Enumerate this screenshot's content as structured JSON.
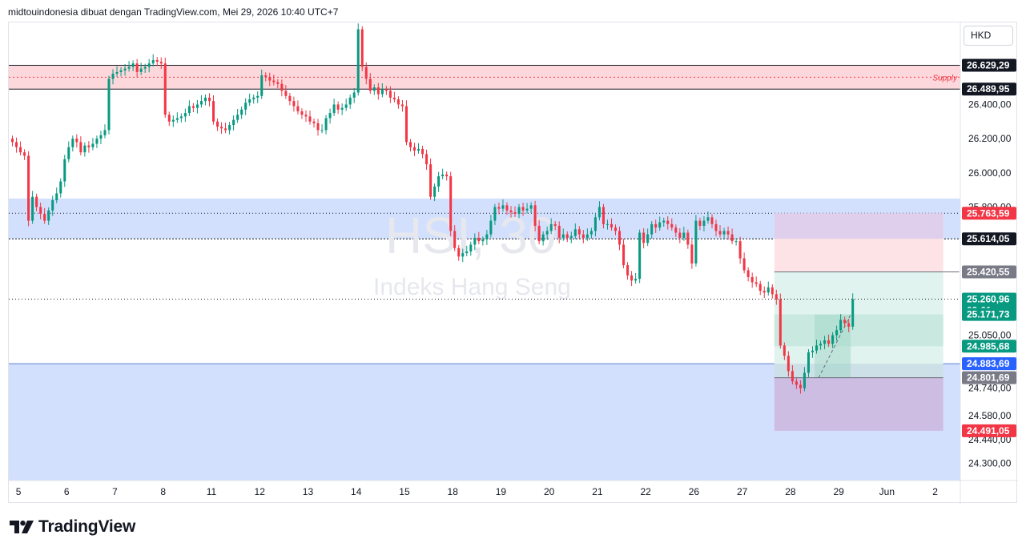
{
  "header": {
    "text": "midtouindonesia dibuat dengan TradingView.com, Mei 29, 2026 10:40 UTC+7"
  },
  "currency": "HKD",
  "footer": {
    "logo_text": "TradingView",
    "logo_icon": "tradingview-logo-icon"
  },
  "colors": {
    "up": "#089981",
    "down": "#f23645",
    "supply_fill": "#fcd7db",
    "demand_fill": "#d3e0fd",
    "stop_zone": "#fde3e6",
    "target_zone": "#e0f3ee",
    "text": "#131722",
    "black_tag": "#131722",
    "grey_tag": "#787b86",
    "blue_tag": "#2962ff",
    "red_tag": "#f23645",
    "green_tag": "#089981"
  },
  "chart_data": {
    "type": "candlestick",
    "symbol_watermark": "HSI, 30",
    "name_watermark": "Indeks Hang Seng",
    "y_axis": {
      "range": [
        24200,
        26880
      ],
      "ticks": [
        "26.400,00",
        "26.200,00",
        "26.000,00",
        "25.800,00",
        "25.050,00",
        "24.740,00",
        "24.580,00",
        "24.440,00",
        "24.300,00"
      ],
      "tick_values": [
        26400,
        26200,
        26000,
        25800,
        25050,
        24740,
        24580,
        24440,
        24300
      ]
    },
    "x_axis": {
      "labels": [
        "5",
        "6",
        "7",
        "8",
        "11",
        "12",
        "13",
        "14",
        "15",
        "18",
        "19",
        "20",
        "21",
        "22",
        "26",
        "27",
        "28",
        "29",
        "Jun",
        "2"
      ],
      "label_bars": [
        2,
        14,
        26,
        38,
        50,
        62,
        74,
        86,
        98,
        110,
        122,
        134,
        146,
        158,
        170,
        182,
        194,
        206,
        218,
        230
      ]
    },
    "zones": [
      {
        "name": "Supply",
        "label": "Supply",
        "top": 26629.29,
        "bottom": 26489.95
      },
      {
        "name": "Demand-upper",
        "top": 25850,
        "bottom": 25614.05
      },
      {
        "name": "Demand-lower",
        "top": 24883.69,
        "bottom": 24200
      }
    ],
    "position": {
      "start_bar": 190,
      "end_bar": 232,
      "stop": 25763.59,
      "entry": 25420.55,
      "target1": 25171.73,
      "target2": 24985.68,
      "low": 24801.69,
      "final": 24491.05
    },
    "price_tags": [
      {
        "label": "26.629,29",
        "value": 26629.29,
        "style": "black_tag"
      },
      {
        "label": "26.489,95",
        "value": 26489.95,
        "style": "black_tag"
      },
      {
        "label": "25.763,59",
        "value": 25763.59,
        "style": "red_tag"
      },
      {
        "label": "25.614,05",
        "value": 25614.05,
        "style": "black_tag"
      },
      {
        "label": "25.420,55",
        "value": 25420.55,
        "style": "grey_tag"
      },
      {
        "label": "25.260,96",
        "sublabel": "09:01",
        "value": 25260.96,
        "style": "green_tag"
      },
      {
        "label": "25.171,73",
        "value": 25171.73,
        "style": "green_tag"
      },
      {
        "label": "24.985,68",
        "value": 24985.68,
        "style": "green_tag"
      },
      {
        "label": "24.883,69",
        "value": 24883.69,
        "style": "blue_tag"
      },
      {
        "label": "24.801,69",
        "value": 24801.69,
        "style": "grey_tag"
      },
      {
        "label": "24.491,05",
        "value": 24491.05,
        "style": "red_tag"
      }
    ],
    "closes": [
      26180,
      26150,
      26120,
      26100,
      25720,
      25860,
      25800,
      25760,
      25720,
      25780,
      25840,
      25880,
      25950,
      26080,
      26150,
      26200,
      26180,
      26120,
      26160,
      26150,
      26170,
      26200,
      26220,
      26250,
      26550,
      26580,
      26590,
      26600,
      26610,
      26620,
      26640,
      26590,
      26610,
      26620,
      26640,
      26660,
      26650,
      26640,
      26340,
      26300,
      26310,
      26320,
      26330,
      26350,
      26390,
      26380,
      26400,
      26420,
      26440,
      26420,
      26300,
      26270,
      26260,
      26250,
      26280,
      26310,
      26340,
      26370,
      26410,
      26430,
      26440,
      26450,
      26570,
      26560,
      26540,
      26530,
      26520,
      26480,
      26450,
      26420,
      26390,
      26360,
      26340,
      26330,
      26300,
      26290,
      26250,
      26250,
      26320,
      26350,
      26400,
      26370,
      26380,
      26400,
      26440,
      26470,
      26840,
      26620,
      26550,
      26480,
      26500,
      26460,
      26490,
      26480,
      26440,
      26430,
      26400,
      26390,
      26180,
      26150,
      26130,
      26140,
      26110,
      26050,
      25860,
      25920,
      25980,
      25990,
      25980,
      25660,
      25560,
      25510,
      25530,
      25540,
      25580,
      25620,
      25600,
      25610,
      25640,
      25720,
      25800,
      25790,
      25810,
      25780,
      25770,
      25760,
      25800,
      25780,
      25790,
      25810,
      25690,
      25600,
      25640,
      25660,
      25700,
      25690,
      25620,
      25640,
      25620,
      25630,
      25670,
      25640,
      25620,
      25640,
      25660,
      25740,
      25800,
      25700,
      25700,
      25680,
      25660,
      25580,
      25460,
      25400,
      25370,
      25380,
      25650,
      25590,
      25640,
      25700,
      25680,
      25710,
      25720,
      25700,
      25680,
      25650,
      25620,
      25650,
      25580,
      25470,
      25720,
      25690,
      25720,
      25740,
      25700,
      25660,
      25640,
      25660,
      25640,
      25600,
      25600,
      25500,
      25430,
      25390,
      25360,
      25350,
      25310,
      25300,
      25330,
      25290,
      25260,
      24990,
      24930,
      24840,
      24780,
      24760,
      24740,
      24830,
      24950,
      24960,
      24990,
      25000,
      25020,
      25000,
      25050,
      25080,
      25140,
      25120,
      25100,
      25261
    ]
  }
}
